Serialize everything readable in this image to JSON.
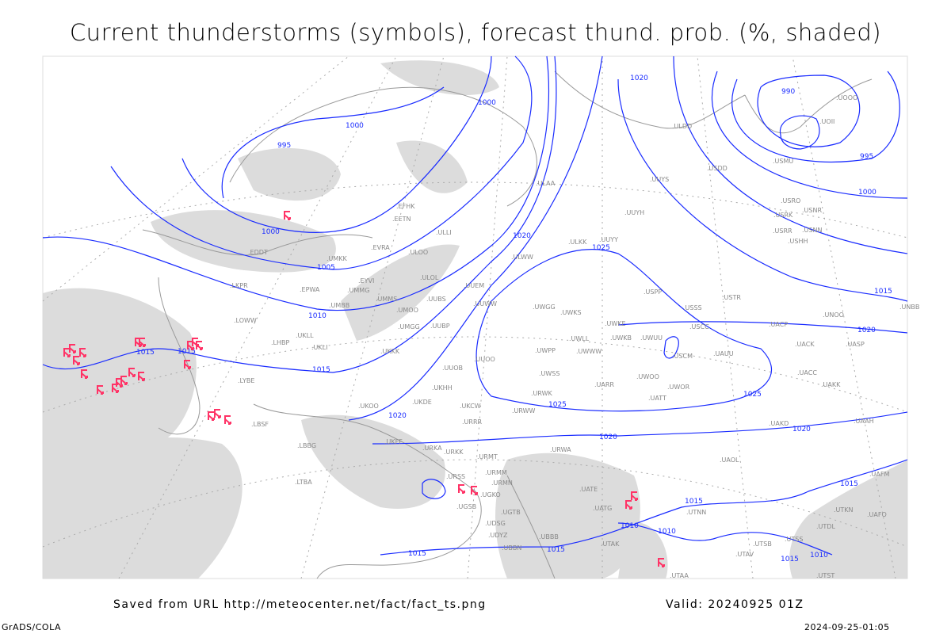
{
  "title": "Current thunderstorms (symbols), forecast thund. prob. (%, shaded)",
  "footer": {
    "source": "Saved from URL http://meteocenter.net/fact/fact_ts.png",
    "valid": "Valid: 20240925 01Z",
    "software": "GrADS/COLA",
    "generated": "2024-09-25-01:05"
  },
  "colors": {
    "isobar": "#1a2cff",
    "thunderstorm_symbol": "#ff3366",
    "shading": "#d0d0d0",
    "coast": "#999999"
  },
  "legend_icons": {
    "thunderstorm": "thunderstorm-symbol-icon"
  },
  "isobar_labels": [
    "995",
    "1000",
    "1000",
    "1000",
    "1005",
    "1010",
    "1015",
    "1015",
    "1015",
    "1020",
    "1020",
    "1020",
    "1025",
    "1025",
    "1025",
    "1020",
    "1020",
    "1020",
    "1015",
    "990",
    "995",
    "1000",
    "1015",
    "1015",
    "1010",
    "1010",
    "1015",
    "1015",
    "1015",
    "1010"
  ],
  "stations": [
    "ULAA",
    "ULLI",
    "ULOO",
    "EVRA",
    "EETN",
    "EFHK",
    "UMKK",
    "EDDT",
    "EPWA",
    "UMMG",
    "UMBB",
    "EYVI",
    "UUEM",
    "UUWW",
    "UMMS",
    "UMOO",
    "UUBS",
    "ULOL",
    "UMGG",
    "UUBP",
    "UKKK",
    "UKLL",
    "UKLI",
    "LHBP",
    "LOWW",
    "LKPR",
    "LYBE",
    "LBSF",
    "LBBG",
    "LTBA",
    "UKOO",
    "UKHH",
    "UKDE",
    "UUOB",
    "UUOO",
    "URRR",
    "UKCW",
    "URKK",
    "URKA",
    "UKFF",
    "URMT",
    "URMM",
    "URMN",
    "URSS",
    "UGSB",
    "UGKO",
    "UGTB",
    "UDSG",
    "UBBB",
    "UBBN",
    "UDYZ",
    "URWA",
    "UATG",
    "UATE",
    "UTAK",
    "UTAA",
    "UTNN",
    "UAOL",
    "UAKD",
    "UACC",
    "UAKK",
    "UASP",
    "UACK",
    "UACP",
    "UNOO",
    "USTR",
    "USSS",
    "USCC",
    "UAUU",
    "USCM",
    "UWOR",
    "UWOO",
    "UATT",
    "UARR",
    "UWSS",
    "URWK",
    "URWW",
    "UWPP",
    "UWWW",
    "UWLL",
    "UWKE",
    "UWKB",
    "UWUU",
    "UWGG",
    "UWKS",
    "USPP",
    "UUYY",
    "ULKK",
    "ULWW",
    "UUYH",
    "UUYS",
    "ULDD",
    "USDD",
    "USMU",
    "USRO",
    "USRK",
    "USNR",
    "USRR",
    "USNN",
    "USHH",
    "UOOO",
    "UOII",
    "UNBB",
    "UTSS",
    "UTSB",
    "UTST",
    "UTAV",
    "UTDL",
    "UAFM",
    "UAFO",
    "UTKN",
    "UAAH"
  ]
}
